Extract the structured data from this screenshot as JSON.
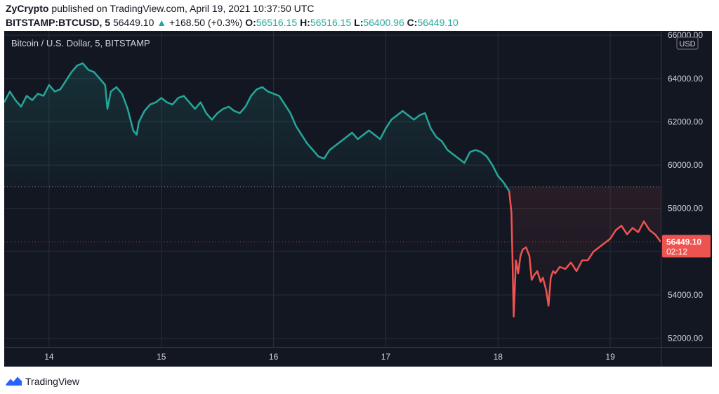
{
  "header": {
    "author": "ZyCrypto",
    "published": "published on TradingView.com, April 19, 2021 10:37:50 UTC",
    "symbol": "BITSTAMP:BTCUSD, 5",
    "last": "56449.10",
    "change": "+168.50 (+0.3%)",
    "change_icon": "triangle-up-icon",
    "o_label": "O:",
    "o_value": "56516.15",
    "h_label": "H:",
    "h_value": "56516.15",
    "l_label": "L:",
    "l_value": "56400.96",
    "c_label": "C:",
    "c_value": "56449.10"
  },
  "chart_title": "Bitcoin / U.S. Dollar, 5, BITSTAMP",
  "currency_badge": "USD",
  "price_tag": {
    "value": "56449.10",
    "countdown": "02:12"
  },
  "footer": {
    "brand": "TradingView",
    "logo_icon": "tradingview-logo-icon"
  },
  "colors": {
    "background": "#131722",
    "up": "#26a69a",
    "down": "#ef5350",
    "grid": "#2a2e39",
    "axis_text": "#d1d4dc"
  },
  "chart_data": {
    "type": "line",
    "title": "Bitcoin / U.S. Dollar, 5, BITSTAMP",
    "xlabel": "",
    "ylabel": "",
    "x_ticks": [
      "14",
      "15",
      "16",
      "17",
      "18",
      "19"
    ],
    "y_ticks": [
      "52000.00",
      "54000.00",
      "56000.00",
      "58000.00",
      "60000.00",
      "62000.00",
      "64000.00",
      "66000.00"
    ],
    "ylim": [
      51600,
      66200
    ],
    "xlim": [
      13.6,
      19.45
    ],
    "baseline": 59000,
    "last_value": 56449.1,
    "grid": true,
    "series": [
      {
        "x": [
          13.6,
          13.65,
          13.7,
          13.75,
          13.8,
          13.85,
          13.9,
          13.95,
          14.0,
          14.05,
          14.1,
          14.15,
          14.2,
          14.25,
          14.3,
          14.35,
          14.4,
          14.45,
          14.5,
          14.52,
          14.55,
          14.6,
          14.65,
          14.7,
          14.75,
          14.78,
          14.8,
          14.85,
          14.9,
          14.95,
          15.0,
          15.05,
          15.1,
          15.15,
          15.2,
          15.25,
          15.3,
          15.35,
          15.4,
          15.45,
          15.5,
          15.55,
          15.6,
          15.65,
          15.7,
          15.75,
          15.8,
          15.85,
          15.9,
          15.95,
          16.0,
          16.05,
          16.1,
          16.15,
          16.2,
          16.25,
          16.3,
          16.35,
          16.4,
          16.45,
          16.5,
          16.55,
          16.6,
          16.65,
          16.7,
          16.75,
          16.8,
          16.85,
          16.9,
          16.95,
          17.0,
          17.05,
          17.1,
          17.15,
          17.2,
          17.25,
          17.3,
          17.35,
          17.4,
          17.45,
          17.5,
          17.55,
          17.6,
          17.65,
          17.7,
          17.75,
          17.8,
          17.85,
          17.9,
          17.95,
          18.0,
          18.05,
          18.1
        ],
        "y": [
          62900,
          63400,
          63000,
          62700,
          63200,
          63000,
          63300,
          63200,
          63700,
          63400,
          63500,
          63900,
          64300,
          64600,
          64700,
          64400,
          64300,
          64000,
          63700,
          62600,
          63400,
          63600,
          63300,
          62600,
          61600,
          61400,
          62000,
          62500,
          62800,
          62900,
          63100,
          62900,
          62800,
          63100,
          63200,
          62900,
          62600,
          62900,
          62400,
          62100,
          62400,
          62600,
          62700,
          62500,
          62400,
          62700,
          63200,
          63500,
          63600,
          63400,
          63300,
          63200,
          62800,
          62400,
          61800,
          61400,
          61000,
          60700,
          60400,
          60300,
          60700,
          60900,
          61100,
          61300,
          61500,
          61200,
          61400,
          61600,
          61400,
          61200,
          61700,
          62100,
          62300,
          62500,
          62300,
          62100,
          62300,
          62400,
          61700,
          61300,
          61100,
          60700,
          60500,
          60300,
          60100,
          60600,
          60700,
          60600,
          60400,
          60000,
          59500,
          59200,
          58800
        ]
      },
      {
        "x": [
          18.1,
          18.12,
          18.13,
          18.14,
          18.16,
          18.18,
          18.2,
          18.22,
          18.25,
          18.28,
          18.3,
          18.32,
          18.35,
          18.38,
          18.4,
          18.43,
          18.45,
          18.47,
          18.49,
          18.51,
          18.55,
          18.6,
          18.65,
          18.7,
          18.75,
          18.8,
          18.85,
          18.9,
          18.95,
          19.0,
          19.05,
          19.1,
          19.15,
          19.2,
          19.25,
          19.3,
          19.35,
          19.4,
          19.43,
          19.45
        ],
        "y": [
          58800,
          57800,
          55500,
          53000,
          55600,
          55000,
          55800,
          56100,
          56200,
          55800,
          54700,
          54900,
          55100,
          54600,
          54800,
          54200,
          53500,
          54800,
          55100,
          55000,
          55300,
          55200,
          55500,
          55100,
          55600,
          55600,
          56000,
          56200,
          56400,
          56600,
          57000,
          57200,
          56800,
          57100,
          56900,
          57400,
          57000,
          56800,
          56600,
          56449.1
        ]
      }
    ]
  }
}
